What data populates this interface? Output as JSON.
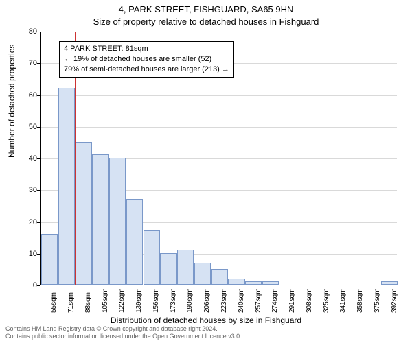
{
  "chart": {
    "type": "histogram",
    "title_line1": "4, PARK STREET, FISHGUARD, SA65 9HN",
    "title_line2": "Size of property relative to detached houses in Fishguard",
    "xlabel": "Distribution of detached houses by size in Fishguard",
    "ylabel": "Number of detached properties",
    "background_color": "#ffffff",
    "grid_color": "#d9d9d9",
    "bar_fill_color": "#d6e2f3",
    "bar_border_color": "#7a98c9",
    "refline_color": "#cc3333",
    "ylim": [
      0,
      80
    ],
    "ytick_step": 10,
    "yticks": [
      0,
      10,
      20,
      30,
      40,
      50,
      60,
      70,
      80
    ],
    "categories": [
      "55sqm",
      "71sqm",
      "88sqm",
      "105sqm",
      "122sqm",
      "139sqm",
      "156sqm",
      "173sqm",
      "190sqm",
      "206sqm",
      "223sqm",
      "240sqm",
      "257sqm",
      "274sqm",
      "291sqm",
      "308sqm",
      "325sqm",
      "341sqm",
      "358sqm",
      "375sqm",
      "392sqm"
    ],
    "values": [
      16,
      62,
      45,
      41,
      40,
      27,
      17,
      10,
      11,
      7,
      5,
      2,
      1,
      1,
      0,
      0,
      0,
      0,
      0,
      0,
      1
    ],
    "reference_sqm": 81,
    "annotation": {
      "line1": "4 PARK STREET: 81sqm",
      "line2": "← 19% of detached houses are smaller (52)",
      "line3": "79% of semi-detached houses are larger (213) →"
    },
    "footer_line1": "Contains HM Land Registry data © Crown copyright and database right 2024.",
    "footer_line2": "Contains public sector information licensed under the Open Government Licence v3.0.",
    "title_fontsize": 13,
    "label_fontsize": 12,
    "tick_fontsize": 11
  }
}
